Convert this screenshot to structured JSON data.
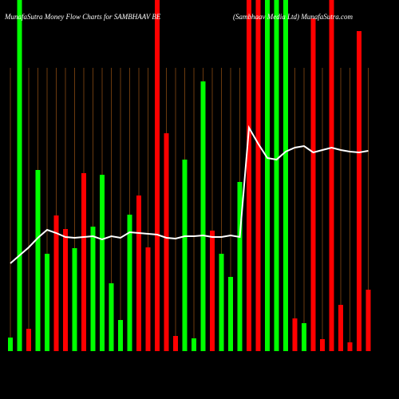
{
  "chart_data": {
    "type": "bar",
    "title": "MunafaSutra  Money Flow  Charts for SAMBHAAV BE",
    "subtitle": "(Sambhaav Media Ltd) MunafaSutra.com",
    "ylim": [
      0,
      440
    ],
    "series": [
      {
        "name": null,
        "values": [
          17,
          440,
          28,
          227,
          122,
          170,
          153,
          129,
          223,
          156,
          221,
          85,
          39,
          171,
          195,
          130,
          440,
          273,
          19,
          240,
          16,
          338,
          151,
          122,
          93,
          212,
          440,
          440,
          440,
          440,
          440,
          41,
          35,
          417,
          15,
          440,
          58,
          11,
          401,
          77
        ],
        "colors": [
          "#00ff00",
          "#00ff00",
          "#ff0000",
          "#00ff00",
          "#00ff00",
          "#ff0000",
          "#ff0000",
          "#00ff00",
          "#ff0000",
          "#00ff00",
          "#00ff00",
          "#00ff00",
          "#00ff00",
          "#00ff00",
          "#ff0000",
          "#ff0000",
          "#ff0000",
          "#ff0000",
          "#ff0000",
          "#00ff00",
          "#00ff00",
          "#00ff00",
          "#ff0000",
          "#00ff00",
          "#00ff00",
          "#00ff00",
          "#ff0000",
          "#ff0000",
          "#00ff00",
          "#00ff00",
          "#00ff00",
          "#ff0000",
          "#00ff00",
          "#ff0000",
          "#ff0000",
          "#ff0000",
          "#ff0000",
          "#ff0000",
          "#ff0000",
          "#ff0000"
        ]
      },
      {
        "name": null,
        "type": "line",
        "color": "#ffffff",
        "values": [
          110,
          120,
          130,
          142,
          152,
          148,
          143,
          142,
          143,
          144,
          140,
          144,
          142,
          149,
          148,
          147,
          146,
          142,
          141,
          144,
          144,
          145,
          143,
          143,
          145,
          143,
          280,
          260,
          242,
          240,
          250,
          255,
          257,
          249,
          252,
          255,
          252,
          250,
          249,
          251
        ]
      }
    ]
  }
}
